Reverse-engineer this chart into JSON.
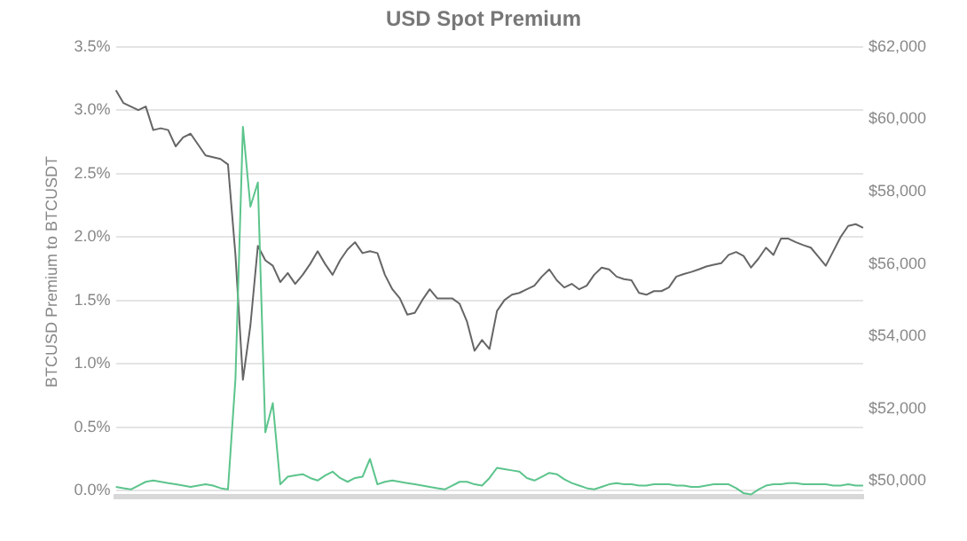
{
  "chart_data": {
    "type": "line",
    "title": "USD Spot Premium",
    "ylabel": "BTCUSD Premium to BTCUSDT",
    "categories": [
      null,
      null,
      null,
      null,
      null,
      null,
      null,
      null,
      null,
      null,
      null,
      null,
      null,
      null,
      null,
      null,
      null,
      null,
      null,
      null,
      null,
      null,
      null,
      null,
      null,
      null,
      null,
      null,
      null,
      null,
      null,
      null,
      null,
      null,
      null,
      null,
      null,
      null,
      null,
      null,
      null,
      null,
      null,
      null,
      null,
      null,
      null,
      null,
      null,
      null,
      null,
      null,
      null,
      null,
      null,
      null,
      null,
      null,
      null,
      null,
      null,
      null,
      null,
      null,
      null,
      null,
      null,
      null,
      null,
      null,
      null,
      null,
      null,
      null,
      null,
      null,
      null,
      null,
      null,
      null,
      null,
      null,
      null,
      null,
      null,
      null,
      null,
      null,
      null,
      null,
      null,
      null,
      null,
      null,
      null,
      null,
      null,
      null,
      null,
      null,
      null
    ],
    "ylim": [
      -0.05,
      3.5
    ],
    "yticks": [
      {
        "value": 0,
        "label": "0.0%"
      },
      {
        "value": 0.5,
        "label": "0.5%"
      },
      {
        "value": 1,
        "label": "1.0%"
      },
      {
        "value": 1.5,
        "label": "1.5%"
      },
      {
        "value": 2,
        "label": "2.0%"
      },
      {
        "value": 2.5,
        "label": "2.5%"
      },
      {
        "value": 3,
        "label": "3.0%"
      },
      {
        "value": 3.5,
        "label": "3.5%"
      }
    ],
    "y2lim": [
      49560,
      62000
    ],
    "y2ticks": [
      {
        "value": 50000,
        "label": "$50,000"
      },
      {
        "value": 52000,
        "label": "$52,000"
      },
      {
        "value": 54000,
        "label": "$54,000"
      },
      {
        "value": 56000,
        "label": "$56,000"
      },
      {
        "value": 58000,
        "label": "$58,000"
      },
      {
        "value": 60000,
        "label": "$60,000"
      },
      {
        "value": 62000,
        "label": "$62,000"
      }
    ],
    "grid": "y",
    "legend": false,
    "marker": "none",
    "line_style": "solid",
    "series": [
      {
        "color": "#666666",
        "axis": "y2",
        "values": [
          60800,
          60450,
          60350,
          60250,
          60350,
          59700,
          59750,
          59700,
          59250,
          59500,
          59600,
          59300,
          59000,
          58950,
          58900,
          58750,
          56250,
          52800,
          54300,
          56500,
          56100,
          55950,
          55500,
          55750,
          55450,
          55700,
          56000,
          56350,
          56000,
          55700,
          56100,
          56400,
          56600,
          56300,
          56350,
          56300,
          55700,
          55300,
          55050,
          54600,
          54650,
          55000,
          55300,
          55050,
          55050,
          55050,
          54900,
          54400,
          53600,
          53900,
          53650,
          54700,
          55000,
          55150,
          55200,
          55300,
          55400,
          55650,
          55850,
          55550,
          55350,
          55450,
          55300,
          55400,
          55700,
          55900,
          55850,
          55650,
          55580,
          55550,
          55200,
          55150,
          55250,
          55250,
          55350,
          55650,
          55720,
          55780,
          55850,
          55930,
          55980,
          56020,
          56250,
          56330,
          56220,
          55900,
          56150,
          56450,
          56250,
          56700,
          56700,
          56600,
          56520,
          56450,
          56200,
          55950,
          56350,
          56750,
          57050,
          57100,
          57000
        ]
      },
      {
        "color": "#5cc48c",
        "values": [
          0.03,
          0.02,
          0.01,
          0.04,
          0.07,
          0.08,
          0.07,
          0.06,
          0.05,
          0.04,
          0.03,
          0.04,
          0.05,
          0.04,
          0.02,
          0.01,
          0.88,
          2.87,
          2.24,
          2.43,
          0.46,
          0.69,
          0.05,
          0.11,
          0.12,
          0.13,
          0.1,
          0.08,
          0.12,
          0.15,
          0.1,
          0.07,
          0.1,
          0.11,
          0.25,
          0.05,
          0.07,
          0.08,
          0.07,
          0.06,
          0.05,
          0.04,
          0.03,
          0.02,
          0.01,
          0.04,
          0.07,
          0.07,
          0.05,
          0.04,
          0.1,
          0.18,
          0.17,
          0.16,
          0.15,
          0.1,
          0.08,
          0.11,
          0.14,
          0.13,
          0.09,
          0.06,
          0.04,
          0.02,
          0.01,
          0.03,
          0.05,
          0.06,
          0.05,
          0.05,
          0.04,
          0.04,
          0.05,
          0.05,
          0.05,
          0.04,
          0.04,
          0.03,
          0.03,
          0.04,
          0.05,
          0.05,
          0.05,
          0.02,
          -0.02,
          -0.03,
          0.01,
          0.04,
          0.05,
          0.05,
          0.06,
          0.06,
          0.05,
          0.05,
          0.05,
          0.05,
          0.04,
          0.04,
          0.05,
          0.04,
          0.04
        ]
      }
    ]
  }
}
